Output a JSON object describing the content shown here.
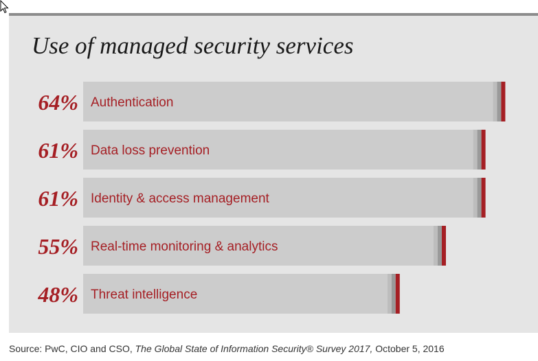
{
  "title": "Use of managed security services",
  "source": {
    "prefix": "Source: PwC, CIO and CSO, ",
    "italic": "The Global State of Information Security® Survey 2017,",
    "suffix": " October 5, 2016"
  },
  "colors": {
    "accent": "#a51f24",
    "bar": "#cccccc",
    "panel": "#e5e5e5",
    "bar_shade_1": "#bdbdbd",
    "bar_shade_2": "#9a9a9a",
    "topline": "#8c8c8c"
  },
  "chart_data": {
    "type": "bar",
    "orientation": "horizontal",
    "categories": [
      "Authentication",
      "Data loss prevention",
      "Identity & access management",
      "Real-time monitoring & analytics",
      "Threat intelligence"
    ],
    "values": [
      64,
      61,
      61,
      55,
      48
    ],
    "value_labels": [
      "64%",
      "61%",
      "61%",
      "55%",
      "48%"
    ],
    "unit": "%",
    "title": "Use of managed security services",
    "xlabel": "",
    "ylabel": "",
    "grid": false
  }
}
